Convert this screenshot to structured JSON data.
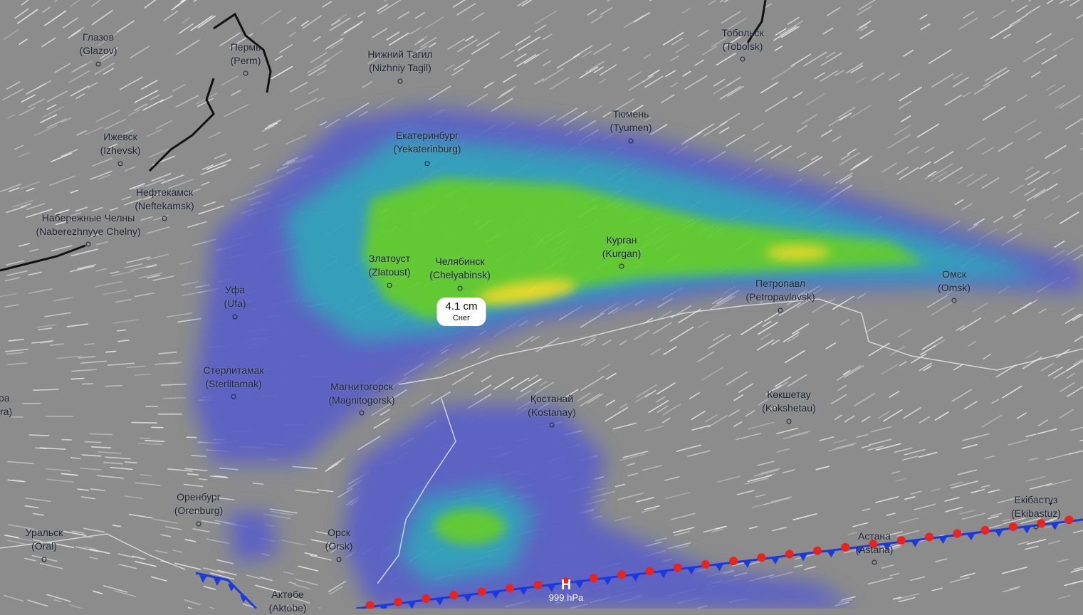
{
  "map": {
    "layer": "snow accumulation",
    "colors": {
      "background": "#8c8c8c",
      "precip_low": "#5a5fc8",
      "precip_mid": "#2fa0c0",
      "precip_high": "#5fcf2f",
      "precip_max": "#f0e020",
      "warm_front": "#e8241c",
      "cold_front": "#1a3ae0"
    },
    "cities": [
      {
        "ru": "Глазов",
        "en": "(Glazov)"
      },
      {
        "ru": "Пермь",
        "en": "(Perm)"
      },
      {
        "ru": "Нижний Тагил",
        "en": "(Nizhniy Tagil)"
      },
      {
        "ru": "Тобольск",
        "en": "(Tobolsk)"
      },
      {
        "ru": "Ижевск",
        "en": "(Izhevsk)"
      },
      {
        "ru": "Тюмень",
        "en": "(Tyumen)"
      },
      {
        "ru": "Екатеринбург",
        "en": "(Yekaterinburg)"
      },
      {
        "ru": "Нефтекамск",
        "en": "(Neftekamsk)"
      },
      {
        "ru": "Набережные Челны",
        "en": "(Naberezhnyye Chelny)"
      },
      {
        "ru": "Курган",
        "en": "(Kurgan)"
      },
      {
        "ru": "Златоуст",
        "en": "(Zlatoust)"
      },
      {
        "ru": "Челябинск",
        "en": "(Chelyabinsk)"
      },
      {
        "ru": "Уфа",
        "en": "(Ufa)"
      },
      {
        "ru": "Петропавл",
        "en": "(Petropavlovsk)"
      },
      {
        "ru": "Омск",
        "en": "(Omsk)"
      },
      {
        "ru": "Стерлитамак",
        "en": "(Sterlitamak)"
      },
      {
        "ru": "Магнитогорск",
        "en": "(Magnitogorsk)"
      },
      {
        "ru": "Қостанай",
        "en": "(Kostanay)"
      },
      {
        "ru": "Көкшетау",
        "en": "(Kokshetau)"
      },
      {
        "ru": "Самара",
        "en": "(Samara)"
      },
      {
        "ru": "Оренбург",
        "en": "(Orenburg)"
      },
      {
        "ru": "Уральск",
        "en": "(Oral)"
      },
      {
        "ru": "Орск",
        "en": "(Orsk)"
      },
      {
        "ru": "Актөбе",
        "en": "(Aktobe)"
      },
      {
        "ru": "Екібастұз",
        "en": "(Ekibastuz)"
      },
      {
        "ru": "Астана",
        "en": "(Astana)"
      }
    ],
    "tooltip": {
      "value": "4.1 cm",
      "type": "Снег"
    },
    "pressure_center": {
      "symbol": "H",
      "value": "999 hPa"
    }
  }
}
